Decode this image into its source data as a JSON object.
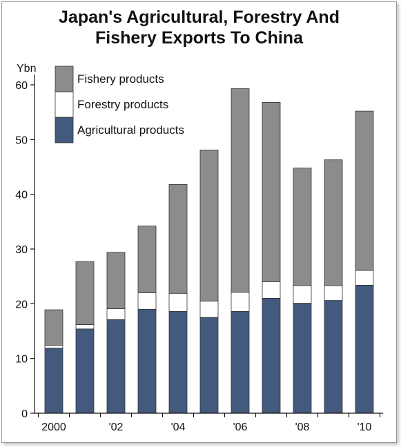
{
  "chart_data": {
    "type": "bar",
    "stacked": true,
    "title": [
      "Japan's Agricultural, Forestry And",
      "Fishery Exports To China"
    ],
    "ylabel": "Ybn",
    "ylim": [
      0,
      60
    ],
    "yticks": [
      0,
      10,
      20,
      30,
      40,
      50,
      60
    ],
    "categories": [
      "2000",
      "2001",
      "2002",
      "2003",
      "2004",
      "2005",
      "2006",
      "2007",
      "2008",
      "2009",
      "2010"
    ],
    "xtick_labels": [
      "2000",
      "",
      "'02",
      "",
      "'04",
      "",
      "'06",
      "",
      "'08",
      "",
      "'10"
    ],
    "series": [
      {
        "name": "Agricultural products",
        "color": "#435a7e",
        "values": [
          11.9,
          15.4,
          17.1,
          19.0,
          18.6,
          17.5,
          18.6,
          21.0,
          20.1,
          20.6,
          23.4
        ]
      },
      {
        "name": "Forestry products",
        "color": "#ffffff",
        "values": [
          0.5,
          0.8,
          2.0,
          3.0,
          3.3,
          3.0,
          3.5,
          3.0,
          3.2,
          2.7,
          2.7
        ]
      },
      {
        "name": "Fishery products",
        "color": "#8c8c8c",
        "values": [
          6.5,
          11.5,
          10.3,
          12.2,
          19.9,
          27.6,
          37.2,
          32.8,
          21.5,
          23.0,
          29.1
        ]
      }
    ],
    "legend_order": [
      "Fishery products",
      "Forestry products",
      "Agricultural products"
    ],
    "legend_position": "top-left",
    "grid": false
  }
}
